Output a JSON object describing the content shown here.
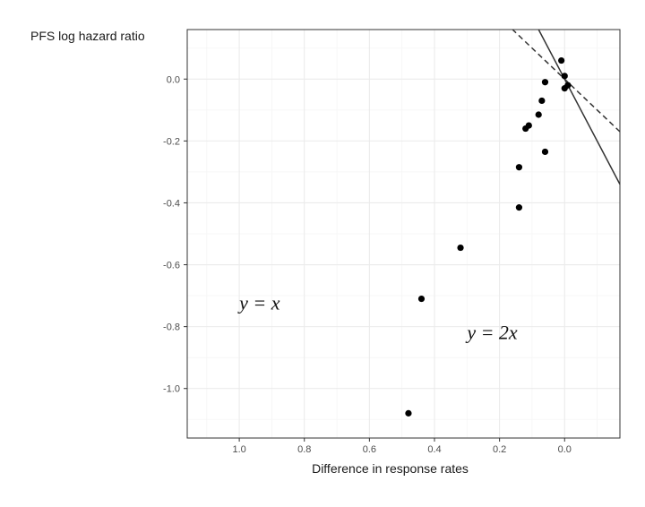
{
  "chart_data": {
    "type": "scatter",
    "title": "",
    "xlabel": "Difference in response rates",
    "ylabel": "PFS log hazard ratio",
    "x_reversed": true,
    "xlim": [
      1.16,
      -0.17
    ],
    "ylim": [
      -1.16,
      0.16
    ],
    "x_ticks": [
      1.0,
      0.8,
      0.6,
      0.4,
      0.2,
      0.0
    ],
    "x_tick_labels": [
      "1.0",
      "0.8",
      "0.6",
      "0.4",
      "0.2",
      "0.0"
    ],
    "y_ticks": [
      0.0,
      -0.2,
      -0.4,
      -0.6,
      -0.8,
      -1.0
    ],
    "y_tick_labels": [
      "0.0",
      "-0.2",
      "-0.4",
      "-0.6",
      "-0.8",
      "-1.0"
    ],
    "grid": true,
    "frame": true,
    "points": [
      {
        "x": 0.01,
        "y": 0.06
      },
      {
        "x": 0.0,
        "y": 0.01
      },
      {
        "x": 0.06,
        "y": -0.01
      },
      {
        "x": -0.01,
        "y": -0.02
      },
      {
        "x": 0.0,
        "y": -0.03
      },
      {
        "x": 0.07,
        "y": -0.07
      },
      {
        "x": 0.08,
        "y": -0.115
      },
      {
        "x": 0.11,
        "y": -0.15
      },
      {
        "x": 0.12,
        "y": -0.16
      },
      {
        "x": 0.06,
        "y": -0.235
      },
      {
        "x": 0.14,
        "y": -0.285
      },
      {
        "x": 0.14,
        "y": -0.415
      },
      {
        "x": 0.32,
        "y": -0.545
      },
      {
        "x": 0.44,
        "y": -0.71
      },
      {
        "x": 0.48,
        "y": -1.08
      }
    ],
    "reference_lines": [
      {
        "label": "y = x",
        "slope": 1,
        "intercept": 0,
        "style": "dashed",
        "color": "#333333"
      },
      {
        "label": "y = 2x",
        "slope": 2,
        "intercept": 0,
        "style": "solid",
        "color": "#333333"
      }
    ],
    "annotations": [
      {
        "text": "y = x",
        "x": 1.0,
        "y": -0.745
      },
      {
        "text": "y = 2x",
        "x": 0.3,
        "y": -0.84
      }
    ],
    "colors": {
      "points": "#000000",
      "grid_major": "#ebebeb",
      "grid_minor": "#f5f5f5",
      "frame": "#333333"
    }
  }
}
